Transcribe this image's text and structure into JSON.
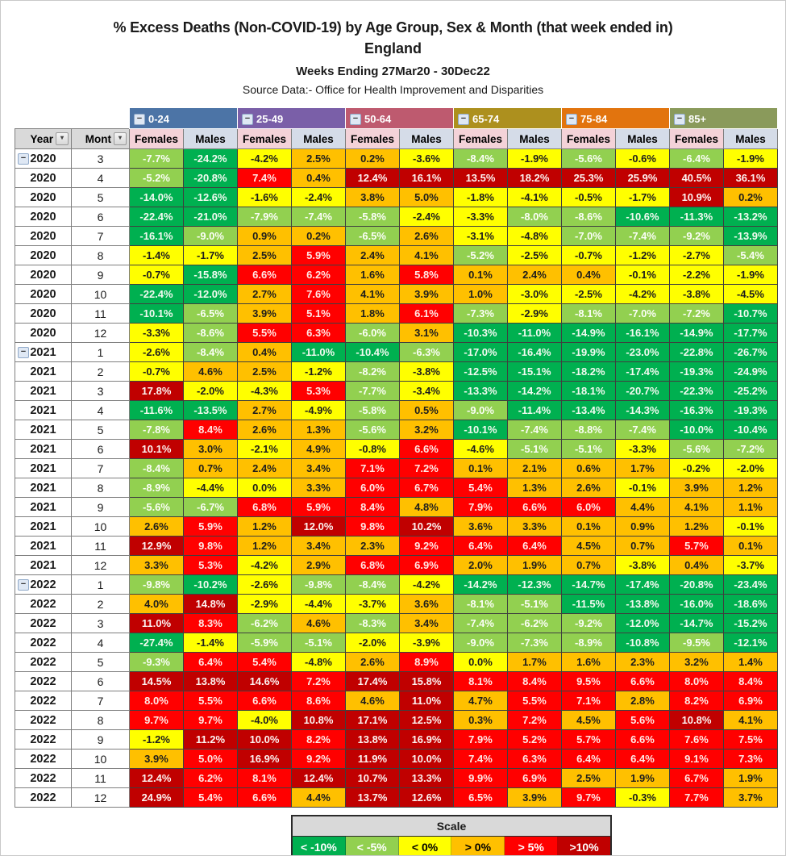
{
  "header": {
    "title_line1": "% Excess Deaths (Non-COVID-19) by Age Group, Sex & Month (that week ended in)",
    "title_line2": "England",
    "subtitle": "Weeks Ending 27Mar20 - 30Dec22",
    "source": "Source Data:- Office for Health Improvement and Disparities"
  },
  "table": {
    "year_header": "Year",
    "month_header": "Mont",
    "collapse_glyph": "−",
    "filter_glyph": "▾",
    "sex_labels": [
      "Females",
      "Males"
    ],
    "sex_colors": {
      "females_bg": "#f4d2d8",
      "males_bg": "#d5dce8"
    }
  },
  "chart_data": {
    "type": "heatmap",
    "title": "% Excess Deaths (Non-COVID-19) by Age Group, Sex & Month (that week ended in) England",
    "subtitle": "Weeks Ending 27Mar20 - 30Dec22",
    "source": "Source Data:- Office for Health Improvement and Disparities",
    "age_groups": [
      {
        "label": "0-24",
        "color": "#4c74a6"
      },
      {
        "label": "25-49",
        "color": "#7a5fa8"
      },
      {
        "label": "50-64",
        "color": "#be5a6f"
      },
      {
        "label": "65-74",
        "color": "#ad901e"
      },
      {
        "label": "75-84",
        "color": "#e2740e"
      },
      {
        "label": "85+",
        "color": "#8a9a5b"
      }
    ],
    "columns": [
      "0-24 Females",
      "0-24 Males",
      "25-49 Females",
      "25-49 Males",
      "50-64 Females",
      "50-64 Males",
      "65-74 Females",
      "65-74 Males",
      "75-84 Females",
      "75-84 Males",
      "85+ Females",
      "85+ Males"
    ],
    "rows": [
      {
        "year": 2020,
        "month": 3,
        "group_start": true,
        "values": [
          -7.7,
          -24.2,
          -4.2,
          2.5,
          0.2,
          -3.6,
          -8.4,
          -1.9,
          -5.6,
          -0.6,
          -6.4,
          -1.9
        ]
      },
      {
        "year": 2020,
        "month": 4,
        "group_start": false,
        "values": [
          -5.2,
          -20.8,
          7.4,
          0.4,
          12.4,
          16.1,
          13.5,
          18.2,
          25.3,
          25.9,
          40.5,
          36.1
        ]
      },
      {
        "year": 2020,
        "month": 5,
        "group_start": false,
        "values": [
          -14.0,
          -12.6,
          -1.6,
          -2.4,
          3.8,
          5.0,
          -1.8,
          -4.1,
          -0.5,
          -1.7,
          10.9,
          0.2
        ]
      },
      {
        "year": 2020,
        "month": 6,
        "group_start": false,
        "values": [
          -22.4,
          -21.0,
          -7.9,
          -7.4,
          -5.8,
          -2.4,
          -3.3,
          -8.0,
          -8.6,
          -10.6,
          -11.3,
          -13.2
        ]
      },
      {
        "year": 2020,
        "month": 7,
        "group_start": false,
        "values": [
          -16.1,
          -9.0,
          0.9,
          0.2,
          -6.5,
          2.6,
          -3.1,
          -4.8,
          -7.0,
          -7.4,
          -9.2,
          -13.9
        ]
      },
      {
        "year": 2020,
        "month": 8,
        "group_start": false,
        "values": [
          -1.4,
          -1.7,
          2.5,
          5.9,
          2.4,
          4.1,
          -5.2,
          -2.5,
          -0.7,
          -1.2,
          -2.7,
          -5.4
        ]
      },
      {
        "year": 2020,
        "month": 9,
        "group_start": false,
        "values": [
          -0.7,
          -15.8,
          6.6,
          6.2,
          1.6,
          5.8,
          0.1,
          2.4,
          0.4,
          -0.1,
          -2.2,
          -1.9
        ]
      },
      {
        "year": 2020,
        "month": 10,
        "group_start": false,
        "values": [
          -22.4,
          -12.0,
          2.7,
          7.6,
          4.1,
          3.9,
          1.0,
          -3.0,
          -2.5,
          -4.2,
          -3.8,
          -4.5
        ]
      },
      {
        "year": 2020,
        "month": 11,
        "group_start": false,
        "values": [
          -10.1,
          -6.5,
          3.9,
          5.1,
          1.8,
          6.1,
          -7.3,
          -2.9,
          -8.1,
          -7.0,
          -7.2,
          -10.7
        ]
      },
      {
        "year": 2020,
        "month": 12,
        "group_start": false,
        "values": [
          -3.3,
          -8.6,
          5.5,
          6.3,
          -6.0,
          3.1,
          -10.3,
          -11.0,
          -14.9,
          -16.1,
          -14.9,
          -17.7
        ]
      },
      {
        "year": 2021,
        "month": 1,
        "group_start": true,
        "values": [
          -2.6,
          -8.4,
          0.4,
          -11.0,
          -10.4,
          -6.3,
          -17.0,
          -16.4,
          -19.9,
          -23.0,
          -22.8,
          -26.7
        ]
      },
      {
        "year": 2021,
        "month": 2,
        "group_start": false,
        "values": [
          -0.7,
          4.6,
          2.5,
          -1.2,
          -8.2,
          -3.8,
          -12.5,
          -15.1,
          -18.2,
          -17.4,
          -19.3,
          -24.9
        ]
      },
      {
        "year": 2021,
        "month": 3,
        "group_start": false,
        "values": [
          17.8,
          -2.0,
          -4.3,
          5.3,
          -7.7,
          -3.4,
          -13.3,
          -14.2,
          -18.1,
          -20.7,
          -22.3,
          -25.2
        ]
      },
      {
        "year": 2021,
        "month": 4,
        "group_start": false,
        "values": [
          -11.6,
          -13.5,
          2.7,
          -4.9,
          -5.8,
          0.5,
          -9.0,
          -11.4,
          -13.4,
          -14.3,
          -16.3,
          -19.3
        ]
      },
      {
        "year": 2021,
        "month": 5,
        "group_start": false,
        "values": [
          -7.8,
          8.4,
          2.6,
          1.3,
          -5.6,
          3.2,
          -10.1,
          -7.4,
          -8.8,
          -7.4,
          -10.0,
          -10.4
        ]
      },
      {
        "year": 2021,
        "month": 6,
        "group_start": false,
        "values": [
          10.1,
          3.0,
          -2.1,
          4.9,
          -0.8,
          6.6,
          -4.6,
          -5.1,
          -5.1,
          -3.3,
          -5.6,
          -7.2
        ]
      },
      {
        "year": 2021,
        "month": 7,
        "group_start": false,
        "values": [
          -8.4,
          0.7,
          2.4,
          3.4,
          7.1,
          7.2,
          0.1,
          2.1,
          0.6,
          1.7,
          -0.2,
          -2.0
        ]
      },
      {
        "year": 2021,
        "month": 8,
        "group_start": false,
        "values": [
          -8.9,
          -4.4,
          0.0,
          3.3,
          6.0,
          6.7,
          5.4,
          1.3,
          2.6,
          -0.1,
          3.9,
          1.2
        ]
      },
      {
        "year": 2021,
        "month": 9,
        "group_start": false,
        "values": [
          -5.6,
          -6.7,
          6.8,
          5.9,
          8.4,
          4.8,
          7.9,
          6.6,
          6.0,
          4.4,
          4.1,
          1.1
        ]
      },
      {
        "year": 2021,
        "month": 10,
        "group_start": false,
        "values": [
          2.6,
          5.9,
          1.2,
          12.0,
          9.8,
          10.2,
          3.6,
          3.3,
          0.1,
          0.9,
          1.2,
          -0.1
        ]
      },
      {
        "year": 2021,
        "month": 11,
        "group_start": false,
        "values": [
          12.9,
          9.8,
          1.2,
          3.4,
          2.3,
          9.2,
          6.4,
          6.4,
          4.5,
          0.7,
          5.7,
          0.1
        ]
      },
      {
        "year": 2021,
        "month": 12,
        "group_start": false,
        "values": [
          3.3,
          5.3,
          -4.2,
          2.9,
          6.8,
          6.9,
          2.0,
          1.9,
          0.7,
          -3.8,
          0.4,
          -3.7
        ]
      },
      {
        "year": 2022,
        "month": 1,
        "group_start": true,
        "values": [
          -9.8,
          -10.2,
          -2.6,
          -9.8,
          -8.4,
          -4.2,
          -14.2,
          -12.3,
          -14.7,
          -17.4,
          -20.8,
          -23.4
        ]
      },
      {
        "year": 2022,
        "month": 2,
        "group_start": false,
        "values": [
          4.0,
          14.8,
          -2.9,
          -4.4,
          -3.7,
          3.6,
          -8.1,
          -5.1,
          -11.5,
          -13.8,
          -16.0,
          -18.6
        ]
      },
      {
        "year": 2022,
        "month": 3,
        "group_start": false,
        "values": [
          11.0,
          8.3,
          -6.2,
          4.6,
          -8.3,
          3.4,
          -7.4,
          -6.2,
          -9.2,
          -12.0,
          -14.7,
          -15.2
        ]
      },
      {
        "year": 2022,
        "month": 4,
        "group_start": false,
        "values": [
          -27.4,
          -1.4,
          -5.9,
          -5.1,
          -2.0,
          -3.9,
          -9.0,
          -7.3,
          -8.9,
          -10.8,
          -9.5,
          -12.1
        ]
      },
      {
        "year": 2022,
        "month": 5,
        "group_start": false,
        "values": [
          -9.3,
          6.4,
          5.4,
          -4.8,
          2.6,
          8.9,
          0.0,
          1.7,
          1.6,
          2.3,
          3.2,
          1.4
        ]
      },
      {
        "year": 2022,
        "month": 6,
        "group_start": false,
        "values": [
          14.5,
          13.8,
          14.6,
          7.2,
          17.4,
          15.8,
          8.1,
          8.4,
          9.5,
          6.6,
          8.0,
          8.4
        ]
      },
      {
        "year": 2022,
        "month": 7,
        "group_start": false,
        "values": [
          8.0,
          5.5,
          6.6,
          8.6,
          4.6,
          11.0,
          4.7,
          5.5,
          7.1,
          2.8,
          8.2,
          6.9
        ]
      },
      {
        "year": 2022,
        "month": 8,
        "group_start": false,
        "values": [
          9.7,
          9.7,
          -4.0,
          10.8,
          17.1,
          12.5,
          0.3,
          7.2,
          4.5,
          5.6,
          10.8,
          4.1
        ]
      },
      {
        "year": 2022,
        "month": 9,
        "group_start": false,
        "values": [
          -1.2,
          11.2,
          10.0,
          8.2,
          13.8,
          16.9,
          7.9,
          5.2,
          5.7,
          6.6,
          7.6,
          7.5
        ]
      },
      {
        "year": 2022,
        "month": 10,
        "group_start": false,
        "values": [
          3.9,
          5.0,
          16.9,
          9.2,
          11.9,
          10.0,
          7.4,
          6.3,
          6.4,
          6.4,
          9.1,
          7.3
        ]
      },
      {
        "year": 2022,
        "month": 11,
        "group_start": false,
        "values": [
          12.4,
          6.2,
          8.1,
          12.4,
          10.7,
          13.3,
          9.9,
          6.9,
          2.5,
          1.9,
          6.7,
          1.9
        ]
      },
      {
        "year": 2022,
        "month": 12,
        "group_start": false,
        "values": [
          24.9,
          5.4,
          6.6,
          4.4,
          13.7,
          12.6,
          6.5,
          3.9,
          9.7,
          -0.3,
          7.7,
          3.7
        ]
      }
    ],
    "color_overrides": [
      {
        "row": 31,
        "col": 1,
        "class": "c4"
      }
    ],
    "scale": {
      "title": "Scale",
      "bins": [
        {
          "label": "< -10%",
          "color": "#00b050",
          "text": "#ffffff"
        },
        {
          "label": "< -5%",
          "color": "#92d050",
          "text": "#ffffff"
        },
        {
          "label": "< 0%",
          "color": "#ffff00",
          "text": "#000000"
        },
        {
          "label": "> 0%",
          "color": "#ffc000",
          "text": "#000000"
        },
        {
          "label": "> 5%",
          "color": "#ff0000",
          "text": "#ffffff"
        },
        {
          "label": ">10%",
          "color": "#c00000",
          "text": "#ffffff"
        }
      ]
    }
  }
}
